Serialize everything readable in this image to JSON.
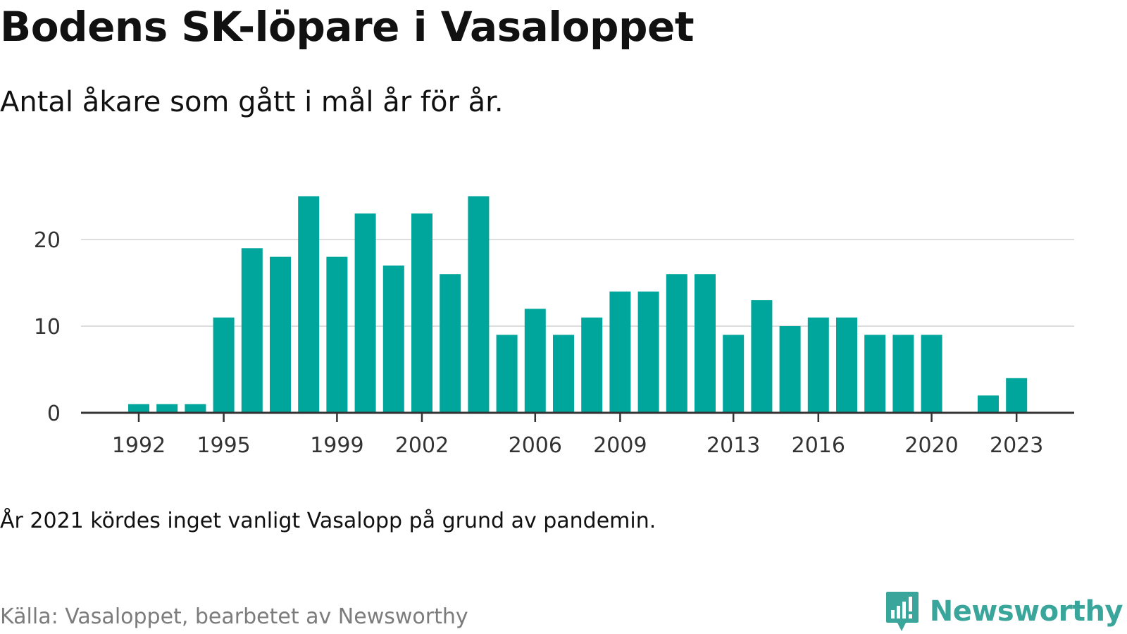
{
  "title": "Bodens SK-löpare i Vasaloppet",
  "subtitle": "Antal åkare som gått i mål år för år.",
  "note": "År 2021 kördes inget vanligt Vasalopp på grund av pandemin.",
  "source": "Källa: Vasaloppet, bearbetet av Newsworthy",
  "brand": {
    "name": "Newsworthy",
    "icon": "newsworthy-logo-icon"
  },
  "colors": {
    "bar": "#00a59b",
    "grid": "#dddddd",
    "axis": "#333333",
    "brand": "#3aa59a"
  },
  "chart_data": {
    "type": "bar",
    "title": "Bodens SK-löpare i Vasaloppet",
    "subtitle": "Antal åkare som gått i mål år för år.",
    "xlabel": "",
    "ylabel": "",
    "x": [
      1991,
      1992,
      1993,
      1994,
      1995,
      1996,
      1997,
      1998,
      1999,
      2000,
      2001,
      2002,
      2003,
      2004,
      2005,
      2006,
      2007,
      2008,
      2009,
      2010,
      2011,
      2012,
      2013,
      2014,
      2015,
      2016,
      2017,
      2018,
      2019,
      2020,
      2021,
      2022,
      2023,
      2024
    ],
    "values": [
      null,
      1,
      1,
      1,
      11,
      19,
      18,
      25,
      18,
      23,
      17,
      23,
      16,
      25,
      9,
      12,
      9,
      11,
      14,
      14,
      16,
      16,
      9,
      13,
      10,
      11,
      11,
      9,
      9,
      9,
      null,
      2,
      4,
      null
    ],
    "xticks": [
      1992,
      1995,
      1999,
      2002,
      2006,
      2009,
      2013,
      2016,
      2020,
      2023
    ],
    "yticks": [
      0,
      10,
      20
    ],
    "ylim": [
      0,
      27
    ],
    "grid": true,
    "legend": "none"
  }
}
